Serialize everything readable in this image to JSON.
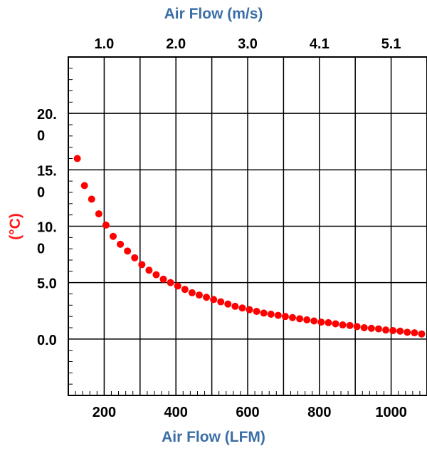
{
  "chart_data": {
    "type": "scatter",
    "title": "",
    "xlabel": "Air Flow (LFM)",
    "x2label": "Air Flow (m/s)",
    "ylabel": "(°C)",
    "xlim": [
      100,
      1100
    ],
    "ylim": [
      -5,
      25
    ],
    "x_ticks": [
      200,
      400,
      600,
      800,
      1000
    ],
    "x_tick_labels": [
      "200",
      "400",
      "600",
      "800",
      "1000"
    ],
    "x2_ticks": [
      200,
      400,
      600,
      800,
      1000
    ],
    "x2_tick_labels": [
      "1.0",
      "2.0",
      "3.0",
      "4.1",
      "5.1"
    ],
    "y_ticks": [
      20,
      15,
      10,
      5,
      0
    ],
    "y_tick_labels": [
      [
        "20.",
        "0"
      ],
      [
        "15.",
        "0"
      ],
      [
        "10.",
        "0"
      ],
      [
        "5.0"
      ],
      [
        "0.0"
      ]
    ],
    "grid": true,
    "marker_color": "#ff0000",
    "series": [
      {
        "x": [
          125,
          145,
          165,
          185,
          205,
          225,
          245,
          265,
          285,
          305,
          325,
          345,
          365,
          385,
          405,
          425,
          445,
          465,
          485,
          505,
          525,
          545,
          565,
          585,
          605,
          625,
          645,
          665,
          685,
          705,
          725,
          745,
          765,
          785,
          805,
          825,
          845,
          865,
          885,
          905,
          925,
          945,
          965,
          985,
          1005,
          1025,
          1045,
          1065,
          1085
        ],
        "y": [
          16.0,
          13.6,
          12.4,
          11.1,
          10.1,
          9.1,
          8.4,
          7.8,
          7.2,
          6.6,
          6.1,
          5.7,
          5.3,
          5.0,
          4.7,
          4.4,
          4.1,
          3.9,
          3.7,
          3.5,
          3.3,
          3.1,
          2.9,
          2.75,
          2.6,
          2.45,
          2.3,
          2.2,
          2.1,
          2.0,
          1.9,
          1.8,
          1.7,
          1.6,
          1.5,
          1.45,
          1.35,
          1.25,
          1.2,
          1.1,
          1.0,
          0.95,
          0.9,
          0.8,
          0.75,
          0.7,
          0.6,
          0.55,
          0.45
        ]
      }
    ]
  }
}
